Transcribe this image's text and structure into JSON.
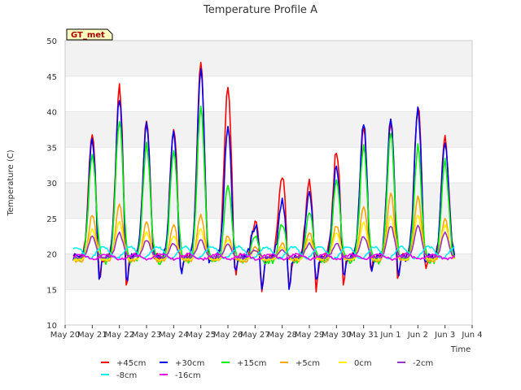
{
  "chart_data": {
    "type": "line",
    "title": "Temperature Profile A",
    "xlabel": "Time",
    "ylabel": "Temperature (C)",
    "badge": "GT_met",
    "ylim": [
      10,
      50
    ],
    "yticks": [
      10,
      15,
      20,
      25,
      30,
      35,
      40,
      45,
      50
    ],
    "xlim": [
      0,
      15
    ],
    "xticks": [
      {
        "x": 0,
        "label": "May 20"
      },
      {
        "x": 1,
        "label": "May 21"
      },
      {
        "x": 2,
        "label": "May 22"
      },
      {
        "x": 3,
        "label": "May 23"
      },
      {
        "x": 4,
        "label": "May 24"
      },
      {
        "x": 5,
        "label": "May 25"
      },
      {
        "x": 6,
        "label": "May 26"
      },
      {
        "x": 7,
        "label": "May 27"
      },
      {
        "x": 8,
        "label": "May 28"
      },
      {
        "x": 9,
        "label": "May 29"
      },
      {
        "x": 10,
        "label": "May 30"
      },
      {
        "x": 11,
        "label": "May 31"
      },
      {
        "x": 12,
        "label": "Jun 1"
      },
      {
        "x": 13,
        "label": "Jun 2"
      },
      {
        "x": 14,
        "label": "Jun 3"
      },
      {
        "x": 15,
        "label": "Jun 4"
      }
    ],
    "grid": true,
    "legend_position": "bottom",
    "daily_peaks": {
      "x": [
        1,
        2,
        3,
        4,
        5,
        6,
        7,
        8,
        9,
        10,
        11,
        12,
        13,
        14
      ],
      "+45cm": [
        37,
        43.5,
        39,
        38,
        47,
        43.5,
        24.5,
        31,
        30,
        34.5,
        38,
        39,
        41,
        36.5
      ],
      "+30cm": [
        36,
        42,
        38.5,
        37,
        46,
        38,
        24,
        27.5,
        29,
        32.5,
        38.5,
        39,
        40.5,
        36
      ],
      "+15cm": [
        34,
        39,
        35.5,
        34.5,
        41,
        30,
        22.5,
        24,
        26,
        30.5,
        35,
        37,
        35,
        33
      ],
      "+5cm": [
        25.5,
        27,
        24.5,
        24,
        25.5,
        22.5,
        21,
        21.5,
        23,
        24,
        26.5,
        28.5,
        28,
        25
      ],
      "0cm": [
        23.5,
        24.5,
        23,
        22.5,
        23.5,
        22,
        20.5,
        21,
        22,
        23,
        24.5,
        25.5,
        25.5,
        24
      ],
      "-2cm": [
        22.5,
        23,
        22,
        21.5,
        22,
        21.5,
        20.5,
        20.5,
        21.5,
        21.5,
        22.5,
        24,
        24,
        23
      ]
    },
    "daily_troughs": {
      "x": [
        1.25,
        2.25,
        3.25,
        4.25,
        5.25,
        6.25,
        7.25,
        8.25,
        9.25,
        10.25,
        11.25,
        12.25,
        13.25
      ],
      "+45cm": [
        14.5,
        12,
        17,
        15,
        16.5,
        14.5,
        14,
        13.5,
        13.5,
        13.5,
        15,
        13.5,
        15.5
      ],
      "+30cm": [
        13.5,
        13.5,
        17.5,
        15,
        16.5,
        15,
        14.5,
        14,
        14.5,
        15,
        15.5,
        14.5,
        16
      ]
    },
    "series": [
      {
        "name": "+45cm",
        "color": "#ff0000"
      },
      {
        "name": "+30cm",
        "color": "#0000ee"
      },
      {
        "name": "+15cm",
        "color": "#00ee00"
      },
      {
        "name": "+5cm",
        "color": "#ffa500"
      },
      {
        "name": "0cm",
        "color": "#ffee00"
      },
      {
        "name": "-2cm",
        "color": "#9932cc"
      },
      {
        "name": "-8cm",
        "color": "#00eeee"
      },
      {
        "name": "-16cm",
        "color": "#ee00ee"
      }
    ]
  }
}
